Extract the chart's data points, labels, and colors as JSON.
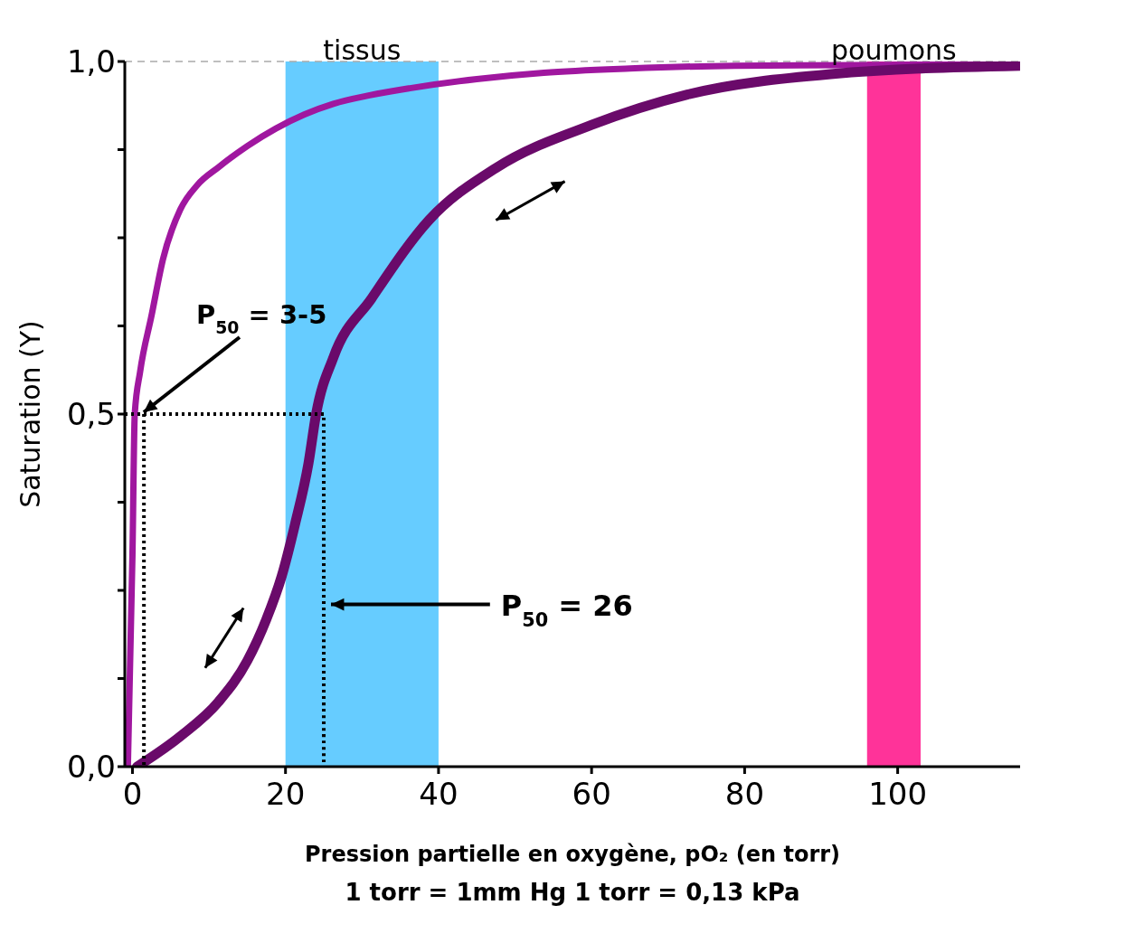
{
  "chart_data": {
    "type": "line",
    "xlabel": "Pression partielle en oxygène, pO₂ (en torr)",
    "ylabel": "Saturation (Y)",
    "xlim": [
      -1,
      116
    ],
    "xticks": [
      0,
      20,
      40,
      60,
      80,
      100
    ],
    "ylim": [
      0,
      1
    ],
    "yticks": [
      {
        "value": 0,
        "label": "0,0"
      },
      {
        "value": 0.125,
        "label": null
      },
      {
        "value": 0.25,
        "label": null
      },
      {
        "value": 0.375,
        "label": null
      },
      {
        "value": 0.5,
        "label": "0,5"
      },
      {
        "value": 0.625,
        "label": null
      },
      {
        "value": 0.75,
        "label": null
      },
      {
        "value": 0.875,
        "label": null
      },
      {
        "value": 1,
        "label": "1,0"
      }
    ],
    "grid": false,
    "legend": false,
    "marker": "none",
    "series": [
      {
        "color": "#a0179f",
        "line_style": "solid",
        "x": [
          -0.6,
          0,
          0.3,
          1,
          2.5,
          4,
          6.25,
          8.5,
          11.25,
          15,
          18.75,
          22.5,
          26.25,
          31,
          36.25,
          45,
          53.75,
          65,
          78.75,
          95,
          116
        ],
        "values": [
          0,
          0.3,
          0.5,
          0.56,
          0.64,
          0.72,
          0.79,
          0.825,
          0.85,
          0.88,
          0.905,
          0.925,
          0.94,
          0.952,
          0.962,
          0.975,
          0.984,
          0.99,
          0.994,
          0.995,
          0.996
        ]
      },
      {
        "color": "#6a0a6a",
        "line_style": "solid",
        "x": [
          0.6,
          6.25,
          11.25,
          15,
          17.5,
          19.5,
          21.25,
          23,
          24,
          26.25,
          31.25,
          38.75,
          47.5,
          60,
          72.5,
          91.25,
          116
        ],
        "values": [
          0,
          0.043,
          0.092,
          0.15,
          0.209,
          0.27,
          0.344,
          0.43,
          0.5,
          0.58,
          0.664,
          0.775,
          0.849,
          0.91,
          0.953,
          0.982,
          0.994
        ]
      },
      {
        "color": "#000000",
        "line_style": "dotted",
        "x": [
          -1,
          25,
          25
        ],
        "values": [
          0.5,
          0.5,
          0
        ]
      },
      {
        "color": "#000000",
        "line_style": "dotted",
        "x": [
          1.5,
          1.5
        ],
        "values": [
          0.5,
          0
        ]
      }
    ],
    "bands": [
      {
        "axis": "x",
        "from": 20,
        "to": 40,
        "label": "tissus",
        "color": "#66ccff"
      },
      {
        "axis": "x",
        "from": 96,
        "to": 103,
        "label": "poumons",
        "color": "#ff3399"
      }
    ],
    "ref_lines": [
      {
        "axis": "y",
        "value": 1,
        "color": "#aaaaaa",
        "line_style": "dashed"
      }
    ],
    "annotations": [
      {
        "text": "P$_{50}$ = 3-5",
        "x": 1,
        "y": 0.5
      },
      "P$_{50}$ = 26",
      "1 torr = 1mm Hg 1 torr = 0,13 kPa"
    ]
  }
}
